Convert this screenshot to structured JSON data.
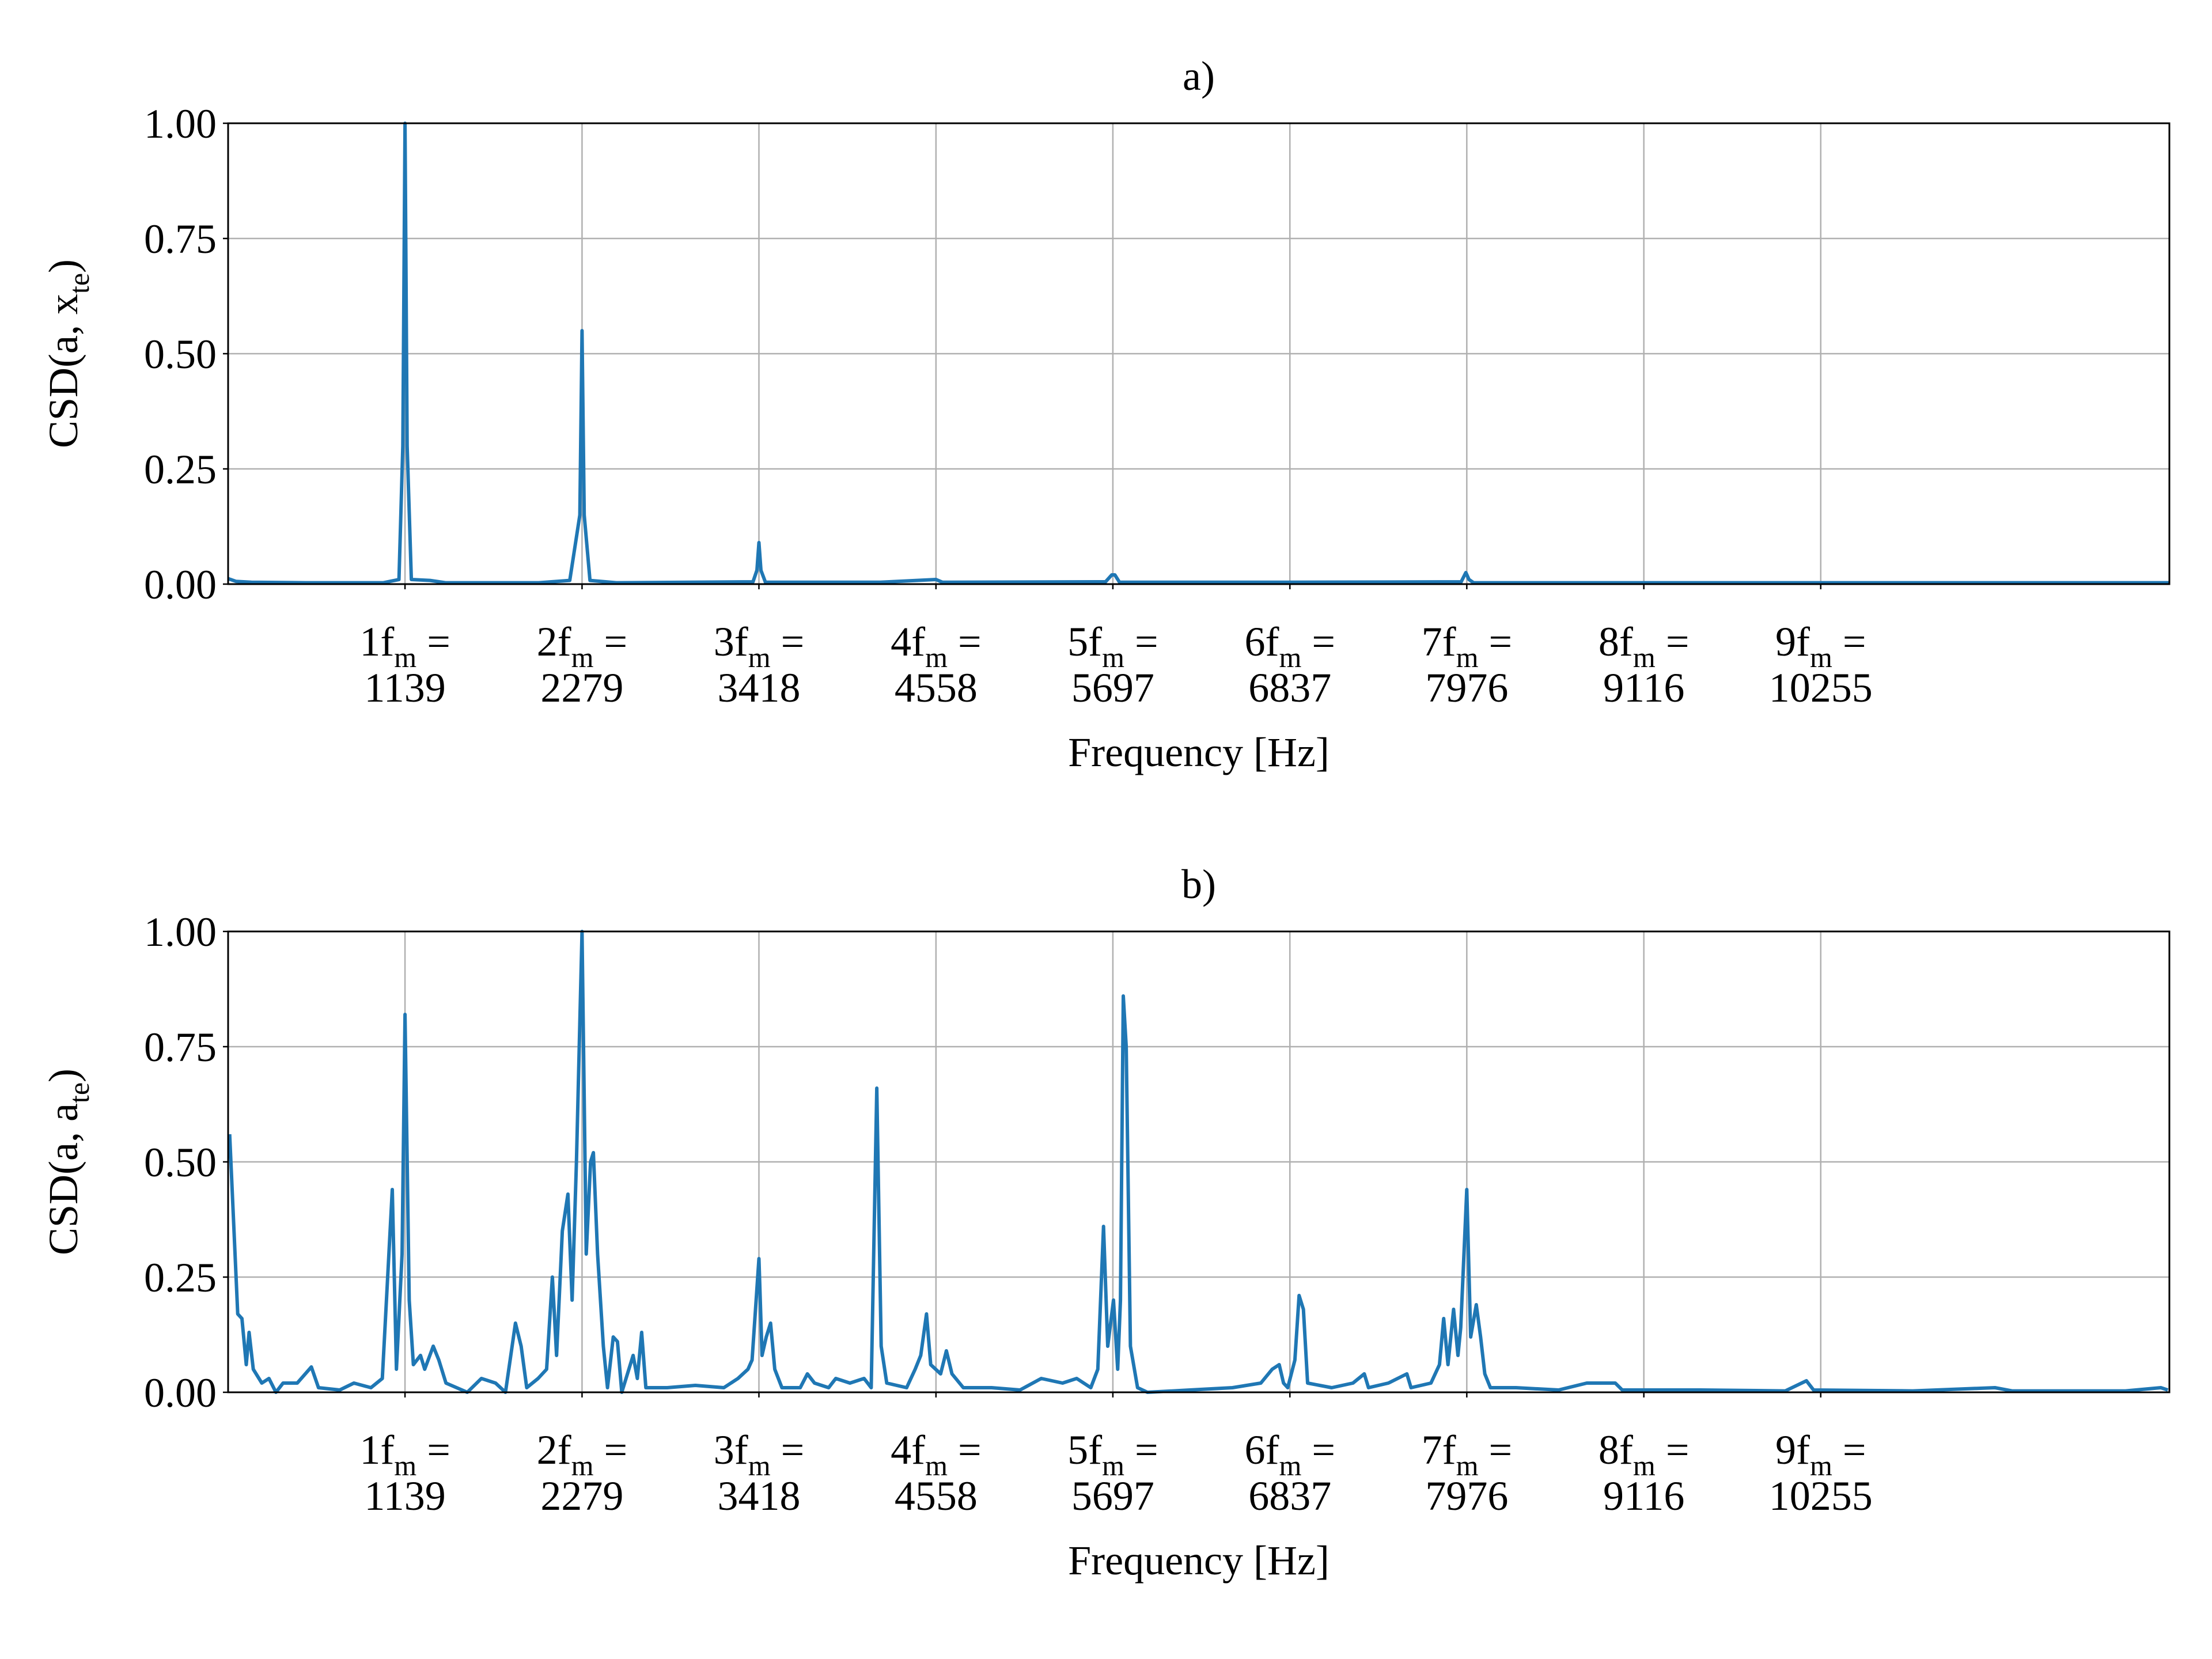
{
  "chart_data": [
    {
      "type": "line",
      "title": "a)",
      "xlabel": "Frequency [Hz]",
      "ylabel": {
        "lead": "CSD(a, x",
        "sub": "te",
        "tail": ")"
      },
      "color": "#1f77b4",
      "grid": true,
      "xlim": [
        0,
        12500
      ],
      "ylim": [
        0,
        1
      ],
      "xticks": [
        {
          "value": 1139,
          "label": {
            "lead": "1f",
            "sub": "m",
            "tail": " =",
            "number": "1139"
          }
        },
        {
          "value": 2279,
          "label": {
            "lead": "2f",
            "sub": "m",
            "tail": " =",
            "number": "2279"
          }
        },
        {
          "value": 3418,
          "label": {
            "lead": "3f",
            "sub": "m",
            "tail": " =",
            "number": "3418"
          }
        },
        {
          "value": 4558,
          "label": {
            "lead": "4f",
            "sub": "m",
            "tail": " =",
            "number": "4558"
          }
        },
        {
          "value": 5697,
          "label": {
            "lead": "5f",
            "sub": "m",
            "tail": " =",
            "number": "5697"
          }
        },
        {
          "value": 6837,
          "label": {
            "lead": "6f",
            "sub": "m",
            "tail": " =",
            "number": "6837"
          }
        },
        {
          "value": 7976,
          "label": {
            "lead": "7f",
            "sub": "m",
            "tail": " =",
            "number": "7976"
          }
        },
        {
          "value": 9116,
          "label": {
            "lead": "8f",
            "sub": "m",
            "tail": " =",
            "number": "9116"
          }
        },
        {
          "value": 10255,
          "label": {
            "lead": "9f",
            "sub": "m",
            "tail": " =",
            "number": "10255"
          }
        }
      ],
      "yticks": [
        {
          "value": 0,
          "label": "0.00"
        },
        {
          "value": 0.25,
          "label": "0.25"
        },
        {
          "value": 0.5,
          "label": "0.50"
        },
        {
          "value": 0.75,
          "label": "0.75"
        },
        {
          "value": 1,
          "label": "1.00"
        }
      ],
      "x": [
        0,
        50,
        150,
        500,
        1000,
        1100,
        1125,
        1139,
        1153,
        1180,
        1300,
        1400,
        2000,
        2200,
        2265,
        2279,
        2293,
        2330,
        2500,
        3380,
        3405,
        3418,
        3431,
        3460,
        4200,
        4558,
        4600,
        5650,
        5690,
        5710,
        5740,
        6837,
        7940,
        7970,
        7990,
        8020,
        10000,
        12500
      ],
      "values": [
        0.012,
        0.006,
        0.004,
        0.003,
        0.003,
        0.01,
        0.3,
        1.0,
        0.3,
        0.01,
        0.008,
        0.003,
        0.003,
        0.008,
        0.15,
        0.55,
        0.15,
        0.008,
        0.003,
        0.005,
        0.03,
        0.09,
        0.03,
        0.004,
        0.004,
        0.01,
        0.004,
        0.005,
        0.02,
        0.02,
        0.004,
        0.004,
        0.005,
        0.025,
        0.01,
        0.003,
        0.003,
        0.003
      ]
    },
    {
      "type": "line",
      "title": "b)",
      "xlabel": "Frequency [Hz]",
      "ylabel": {
        "lead": "CSD(a, a",
        "sub": "te",
        "tail": ")"
      },
      "color": "#1f77b4",
      "grid": true,
      "xlim": [
        0,
        12500
      ],
      "ylim": [
        0,
        1
      ],
      "xticks": [
        {
          "value": 1139,
          "label": {
            "lead": "1f",
            "sub": "m",
            "tail": " =",
            "number": "1139"
          }
        },
        {
          "value": 2279,
          "label": {
            "lead": "2f",
            "sub": "m",
            "tail": " =",
            "number": "2279"
          }
        },
        {
          "value": 3418,
          "label": {
            "lead": "3f",
            "sub": "m",
            "tail": " =",
            "number": "3418"
          }
        },
        {
          "value": 4558,
          "label": {
            "lead": "4f",
            "sub": "m",
            "tail": " =",
            "number": "4558"
          }
        },
        {
          "value": 5697,
          "label": {
            "lead": "5f",
            "sub": "m",
            "tail": " =",
            "number": "5697"
          }
        },
        {
          "value": 6837,
          "label": {
            "lead": "6f",
            "sub": "m",
            "tail": " =",
            "number": "6837"
          }
        },
        {
          "value": 7976,
          "label": {
            "lead": "7f",
            "sub": "m",
            "tail": " =",
            "number": "7976"
          }
        },
        {
          "value": 9116,
          "label": {
            "lead": "8f",
            "sub": "m",
            "tail": " =",
            "number": "9116"
          }
        },
        {
          "value": 10255,
          "label": {
            "lead": "9f",
            "sub": "m",
            "tail": " =",
            "number": "10255"
          }
        }
      ],
      "yticks": [
        {
          "value": 0,
          "label": "0.00"
        },
        {
          "value": 0.25,
          "label": "0.25"
        },
        {
          "value": 0.5,
          "label": "0.50"
        },
        {
          "value": 0.75,
          "label": "0.75"
        },
        {
          "value": 1,
          "label": "1.00"
        }
      ],
      "x": [
        10,
        62,
        89,
        117,
        135,
        162,
        217,
        263,
        308,
        354,
        445,
        536,
        582,
        719,
        810,
        920,
        993,
        1057,
        1084,
        1120,
        1139,
        1166,
        1193,
        1239,
        1266,
        1321,
        1357,
        1403,
        1540,
        1631,
        1722,
        1786,
        1850,
        1887,
        1923,
        1996,
        2051,
        2088,
        2115,
        2152,
        2188,
        2215,
        2243,
        2279,
        2306,
        2334,
        2352,
        2379,
        2416,
        2443,
        2480,
        2507,
        2535,
        2608,
        2635,
        2663,
        2690,
        2827,
        3009,
        3192,
        3283,
        3347,
        3374,
        3418,
        3438,
        3465,
        3493,
        3520,
        3566,
        3684,
        3730,
        3776,
        3867,
        3913,
        4004,
        4095,
        4141,
        4177,
        4205,
        4241,
        4369,
        4424,
        4460,
        4497,
        4524,
        4588,
        4625,
        4661,
        4734,
        4916,
        5099,
        5236,
        5373,
        5464,
        5555,
        5600,
        5637,
        5664,
        5701,
        5728,
        5746,
        5764,
        5783,
        5810,
        5856,
        5920,
        6193,
        6467,
        6650,
        6723,
        6768,
        6796,
        6823,
        6869,
        6896,
        6924,
        6951,
        7106,
        7243,
        7316,
        7343,
        7471,
        7590,
        7617,
        7745,
        7800,
        7827,
        7855,
        7891,
        7919,
        7937,
        7976,
        8001,
        8037,
        8065,
        8092,
        8128,
        8293,
        8567,
        8749,
        8886,
        8932,
        8977,
        9479,
        10027,
        10163,
        10209,
        10848,
        11377,
        11487,
        12217,
        12445,
        12490
      ],
      "values": [
        0.56,
        0.17,
        0.16,
        0.06,
        0.13,
        0.05,
        0.02,
        0.03,
        0.0,
        0.02,
        0.02,
        0.055,
        0.01,
        0.005,
        0.02,
        0.01,
        0.03,
        0.44,
        0.05,
        0.3,
        0.82,
        0.2,
        0.06,
        0.08,
        0.05,
        0.1,
        0.07,
        0.02,
        0.0,
        0.03,
        0.02,
        0.0,
        0.15,
        0.1,
        0.01,
        0.03,
        0.05,
        0.25,
        0.08,
        0.35,
        0.43,
        0.2,
        0.5,
        1.0,
        0.3,
        0.5,
        0.52,
        0.3,
        0.1,
        0.01,
        0.12,
        0.11,
        0.0,
        0.08,
        0.03,
        0.13,
        0.01,
        0.01,
        0.015,
        0.01,
        0.03,
        0.05,
        0.07,
        0.29,
        0.08,
        0.12,
        0.15,
        0.05,
        0.01,
        0.01,
        0.04,
        0.02,
        0.01,
        0.03,
        0.02,
        0.03,
        0.01,
        0.66,
        0.1,
        0.02,
        0.01,
        0.05,
        0.08,
        0.17,
        0.06,
        0.04,
        0.09,
        0.04,
        0.01,
        0.01,
        0.005,
        0.03,
        0.02,
        0.03,
        0.01,
        0.05,
        0.36,
        0.1,
        0.2,
        0.05,
        0.2,
        0.86,
        0.75,
        0.1,
        0.01,
        0.0,
        0.005,
        0.01,
        0.02,
        0.05,
        0.06,
        0.02,
        0.01,
        0.07,
        0.21,
        0.18,
        0.02,
        0.01,
        0.02,
        0.04,
        0.01,
        0.02,
        0.04,
        0.01,
        0.02,
        0.06,
        0.16,
        0.06,
        0.18,
        0.08,
        0.14,
        0.44,
        0.12,
        0.19,
        0.12,
        0.04,
        0.01,
        0.01,
        0.005,
        0.02,
        0.02,
        0.02,
        0.005,
        0.005,
        0.003,
        0.025,
        0.005,
        0.003,
        0.01,
        0.003,
        0.003,
        0.01,
        0.005
      ]
    }
  ]
}
